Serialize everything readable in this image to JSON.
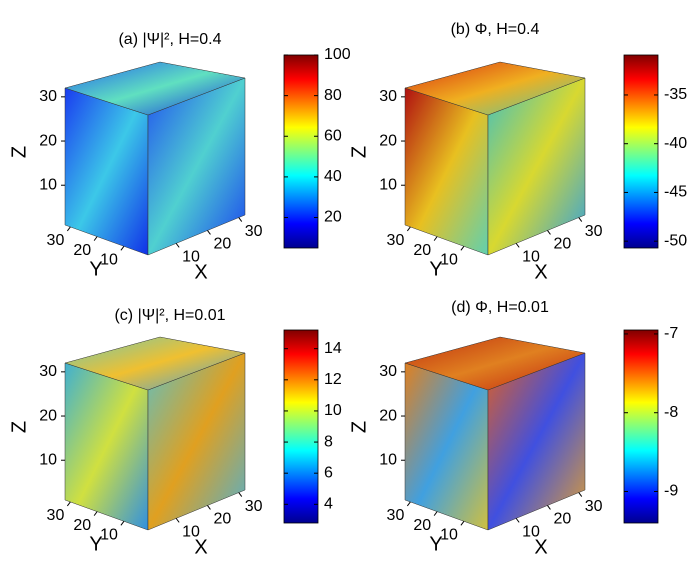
{
  "chart_data": [
    {
      "type": "cube",
      "title": "(a)  |Ψ|², H=0.4",
      "xlabel": "X",
      "ylabel": "Y",
      "zlabel": "Z",
      "xlim": [
        1,
        32
      ],
      "ylim": [
        1,
        32
      ],
      "zlim": [
        1,
        32
      ],
      "xticks": [
        10,
        20,
        30
      ],
      "yticks": [
        10,
        20,
        30
      ],
      "zticks": [
        10,
        20,
        30
      ],
      "colormap": "jet",
      "colorbar": {
        "clim": [
          5,
          100
        ],
        "ticks": [
          20,
          40,
          60,
          80,
          100
        ]
      }
    },
    {
      "type": "cube",
      "title": "(b)  Φ, H=0.4",
      "xlabel": "X",
      "ylabel": "Y",
      "zlabel": "Z",
      "xlim": [
        1,
        32
      ],
      "ylim": [
        1,
        32
      ],
      "zlim": [
        1,
        32
      ],
      "xticks": [
        10,
        20,
        30
      ],
      "yticks": [
        10,
        20,
        30
      ],
      "zticks": [
        10,
        20,
        30
      ],
      "colormap": "jet",
      "colorbar": {
        "clim": [
          -50.7,
          -30.9
        ],
        "ticks": [
          -50,
          -45,
          -40,
          -35
        ]
      }
    },
    {
      "type": "cube",
      "title": "(c)  |Ψ|², H=0.01",
      "xlabel": "X",
      "ylabel": "Y",
      "zlabel": "Z",
      "xlim": [
        1,
        32
      ],
      "ylim": [
        1,
        32
      ],
      "zlim": [
        1,
        32
      ],
      "xticks": [
        10,
        20,
        30
      ],
      "yticks": [
        10,
        20,
        30
      ],
      "zticks": [
        10,
        20,
        30
      ],
      "colormap": "jet",
      "colorbar": {
        "clim": [
          2.8,
          15.2
        ],
        "ticks": [
          4,
          6,
          8,
          10,
          12,
          14
        ]
      }
    },
    {
      "type": "cube",
      "title": "(d)  Φ, H=0.01",
      "xlabel": "X",
      "ylabel": "Y",
      "zlabel": "Z",
      "xlim": [
        1,
        32
      ],
      "ylim": [
        1,
        32
      ],
      "zlim": [
        1,
        32
      ],
      "xticks": [
        10,
        20,
        30
      ],
      "yticks": [
        10,
        20,
        30
      ],
      "zticks": [
        10,
        20,
        30
      ],
      "colormap": "jet",
      "colorbar": {
        "clim": [
          -9.4,
          -6.95
        ],
        "ticks": [
          -9,
          -8,
          -7
        ]
      }
    }
  ]
}
